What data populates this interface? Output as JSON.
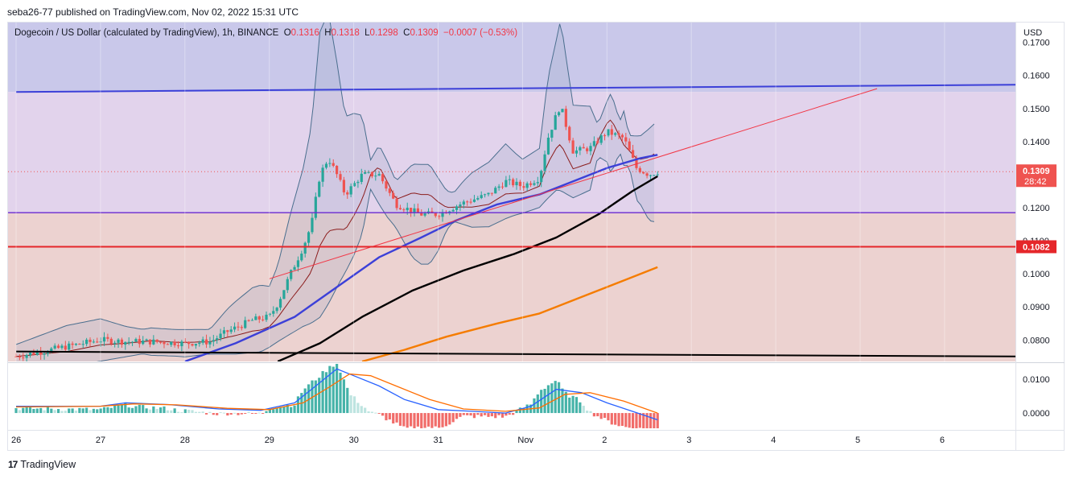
{
  "header": {
    "published": "seba26-77 published on TradingView.com, Nov 02, 2022 15:31 UTC"
  },
  "legend": {
    "symbol": "Dogecoin / US Dollar (calculated by TradingView), 1h, BINANCE",
    "o_label": "O",
    "o": "0.1316",
    "h_label": "H",
    "h": "0.1318",
    "l_label": "L",
    "l": "0.1298",
    "c_label": "C",
    "c": "0.1309",
    "change": "−0.0007 (−0.53%)"
  },
  "price_axis": {
    "currency": "USD",
    "ticks": [
      "0.1700",
      "0.1600",
      "0.1500",
      "0.1400",
      "0.1200",
      "0.1100",
      "0.1000",
      "0.0900",
      "0.0800"
    ],
    "tick_values": [
      0.17,
      0.16,
      0.15,
      0.14,
      0.12,
      0.11,
      0.1,
      0.09,
      0.08
    ],
    "last_price": "0.1309",
    "countdown": "28:42",
    "level_label": "0.1082"
  },
  "osc_axis": {
    "ticks": [
      "0.0100",
      "0.0000"
    ],
    "tick_values": [
      0.01,
      0.0
    ]
  },
  "time_axis": {
    "labels": [
      "26",
      "27",
      "28",
      "29",
      "30",
      "31",
      "Nov",
      "2",
      "3",
      "4",
      "5",
      "6"
    ]
  },
  "colors": {
    "up": "#26a69a",
    "down": "#ef5350",
    "zone_blue": "#c9c8ea",
    "zone_violet": "#e2d3ec",
    "zone_salmon": "#ecd2d0",
    "ma_blue": "#3c40d8",
    "ma_black": "#000000",
    "ma_orange": "#f57c00",
    "bb": "#4a6e8e",
    "bb_basis": "#8b1c1c",
    "level_red": "#e5262a",
    "trend_red": "#f23645"
  },
  "footer": {
    "brand": "TradingView"
  },
  "chart_data": {
    "type": "candlestick",
    "symbol": "DOGE/USD",
    "interval": "1h",
    "x_labels": [
      "26",
      "27",
      "28",
      "29",
      "30",
      "31",
      "Nov",
      "2",
      "3",
      "4",
      "5",
      "6"
    ],
    "ylim": [
      0.0735,
      0.176
    ],
    "close_path": [
      [
        0,
        0.075
      ],
      [
        0.4,
        0.077
      ],
      [
        0.8,
        0.079
      ],
      [
        1.0,
        0.08
      ],
      [
        1.3,
        0.0795
      ],
      [
        1.6,
        0.0795
      ],
      [
        2.0,
        0.079
      ],
      [
        2.3,
        0.0795
      ],
      [
        2.5,
        0.0825
      ],
      [
        2.8,
        0.086
      ],
      [
        3.0,
        0.087
      ],
      [
        3.1,
        0.091
      ],
      [
        3.25,
        0.1
      ],
      [
        3.4,
        0.108
      ],
      [
        3.5,
        0.115
      ],
      [
        3.6,
        0.13
      ],
      [
        3.7,
        0.135
      ],
      [
        3.8,
        0.13
      ],
      [
        3.9,
        0.124
      ],
      [
        4.1,
        0.13
      ],
      [
        4.3,
        0.13
      ],
      [
        4.5,
        0.121
      ],
      [
        4.8,
        0.118
      ],
      [
        5.0,
        0.118
      ],
      [
        5.3,
        0.1215
      ],
      [
        5.6,
        0.124
      ],
      [
        5.8,
        0.128
      ],
      [
        6.0,
        0.1265
      ],
      [
        6.2,
        0.129
      ],
      [
        6.3,
        0.141
      ],
      [
        6.4,
        0.148
      ],
      [
        6.45,
        0.151
      ],
      [
        6.6,
        0.137
      ],
      [
        6.8,
        0.138
      ],
      [
        7.0,
        0.143
      ],
      [
        7.2,
        0.141
      ],
      [
        7.35,
        0.132
      ],
      [
        7.5,
        0.13
      ],
      [
        7.6,
        0.1309
      ]
    ],
    "last": {
      "open": 0.1316,
      "high": 0.1318,
      "low": 0.1298,
      "close": 0.1309,
      "change": -0.0007,
      "change_pct": -0.53
    },
    "horizontal_levels": [
      {
        "value": 0.1185,
        "color": "#6a2ad0"
      },
      {
        "value": 0.1082,
        "color": "#e5262a"
      }
    ],
    "trend_lines": [
      {
        "from": [
          0,
          0.155
        ],
        "to": [
          11.9,
          0.1572
        ],
        "color": "#3c40d8"
      },
      {
        "from": [
          0,
          0.0765
        ],
        "to": [
          11.9,
          0.075
        ],
        "color": "#000000"
      },
      {
        "from": [
          3.0,
          0.0985
        ],
        "to": [
          10.2,
          0.156
        ],
        "color": "#f23645"
      }
    ],
    "zones": [
      {
        "from": 0.155,
        "to": 0.176,
        "color": "#c9c8ea"
      },
      {
        "from": 0.1185,
        "to": 0.155,
        "color": "#e2d3ec"
      },
      {
        "from": 0.0735,
        "to": 0.1185,
        "color": "#ecd2d0"
      }
    ],
    "moving_averages": [
      {
        "color": "#3c40d8",
        "points": [
          [
            2.0,
            0.0735
          ],
          [
            2.6,
            0.079
          ],
          [
            3.3,
            0.087
          ],
          [
            3.8,
            0.096
          ],
          [
            4.3,
            0.105
          ],
          [
            4.8,
            0.111
          ],
          [
            5.2,
            0.116
          ],
          [
            5.7,
            0.121
          ],
          [
            6.2,
            0.124
          ],
          [
            6.6,
            0.128
          ],
          [
            7.0,
            0.132
          ],
          [
            7.4,
            0.135
          ],
          [
            7.6,
            0.136
          ]
        ]
      },
      {
        "color": "#000000",
        "points": [
          [
            3.1,
            0.0735
          ],
          [
            3.6,
            0.079
          ],
          [
            4.1,
            0.087
          ],
          [
            4.7,
            0.095
          ],
          [
            5.3,
            0.101
          ],
          [
            5.9,
            0.106
          ],
          [
            6.4,
            0.111
          ],
          [
            6.9,
            0.118
          ],
          [
            7.3,
            0.125
          ],
          [
            7.6,
            0.1295
          ]
        ]
      },
      {
        "color": "#f57c00",
        "points": [
          [
            4.1,
            0.0735
          ],
          [
            4.6,
            0.077
          ],
          [
            5.1,
            0.081
          ],
          [
            5.7,
            0.085
          ],
          [
            6.2,
            0.088
          ],
          [
            6.7,
            0.093
          ],
          [
            7.2,
            0.098
          ],
          [
            7.6,
            0.102
          ]
        ]
      }
    ],
    "oscillator": {
      "type": "macd",
      "ylim": [
        -0.0045,
        0.0145
      ],
      "macd": [
        [
          0,
          0.002
        ],
        [
          1.0,
          0.002
        ],
        [
          1.3,
          0.003
        ],
        [
          1.8,
          0.0025
        ],
        [
          2.4,
          0.0012
        ],
        [
          2.9,
          0.0008
        ],
        [
          3.3,
          0.003
        ],
        [
          3.6,
          0.009
        ],
        [
          3.8,
          0.013
        ],
        [
          4.0,
          0.011
        ],
        [
          4.3,
          0.008
        ],
        [
          4.6,
          0.004
        ],
        [
          5.0,
          0.001
        ],
        [
          5.4,
          0.0005
        ],
        [
          5.8,
          0.0
        ],
        [
          6.1,
          0.002
        ],
        [
          6.4,
          0.007
        ],
        [
          6.7,
          0.006
        ],
        [
          7.0,
          0.003
        ],
        [
          7.3,
          0.0005
        ],
        [
          7.6,
          -0.002
        ]
      ],
      "signal": [
        [
          0,
          0.0018
        ],
        [
          1.0,
          0.002
        ],
        [
          1.4,
          0.0027
        ],
        [
          1.9,
          0.0024
        ],
        [
          2.5,
          0.0014
        ],
        [
          3.0,
          0.001
        ],
        [
          3.4,
          0.003
        ],
        [
          3.7,
          0.0075
        ],
        [
          3.95,
          0.0115
        ],
        [
          4.2,
          0.011
        ],
        [
          4.5,
          0.008
        ],
        [
          4.9,
          0.004
        ],
        [
          5.3,
          0.0012
        ],
        [
          5.8,
          0.0005
        ],
        [
          6.2,
          0.0015
        ],
        [
          6.5,
          0.0055
        ],
        [
          6.8,
          0.006
        ],
        [
          7.2,
          0.0035
        ],
        [
          7.6,
          0.0
        ]
      ]
    }
  }
}
